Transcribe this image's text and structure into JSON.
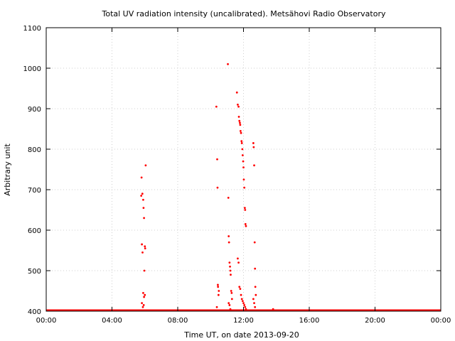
{
  "chart_data": {
    "type": "scatter",
    "title": "Total UV radiation intensity (uncalibrated). Metsähovi Radio Observatory",
    "xlabel": "Time UT, on date 2013-09-20",
    "ylabel": "Arbitrary unit",
    "xlim": [
      0,
      24
    ],
    "ylim": [
      400,
      1100
    ],
    "grid": true,
    "x_tick_values": [
      0,
      4,
      8,
      12,
      16,
      20,
      24
    ],
    "x_tick_labels": [
      "00:00",
      "04:00",
      "08:00",
      "12:00",
      "16:00",
      "20:00",
      "00:00"
    ],
    "y_tick_values": [
      400,
      500,
      600,
      700,
      800,
      900,
      1000,
      1100
    ],
    "y_tick_labels": [
      "400",
      "500",
      "600",
      "700",
      "800",
      "900",
      "1000",
      "1100"
    ],
    "series": [
      {
        "color": "#ff0000",
        "baseline": {
          "y": 400,
          "x_start": 0,
          "x_end": 24
        },
        "x": [
          5.78,
          5.82,
          5.86,
          5.9,
          5.92,
          5.95,
          5.97,
          6.0,
          6.02,
          6.05,
          5.8,
          5.85,
          5.9,
          5.95,
          6.0,
          5.82,
          5.88,
          5.93,
          10.35,
          10.4,
          10.42,
          10.45,
          10.5,
          10.38,
          10.44,
          10.48,
          11.05,
          11.08,
          11.1,
          11.12,
          11.15,
          11.18,
          11.2,
          11.22,
          11.25,
          11.28,
          11.3,
          11.1,
          11.15,
          11.2,
          11.6,
          11.65,
          11.7,
          11.72,
          11.75,
          11.78,
          11.8,
          11.82,
          11.85,
          11.88,
          11.9,
          11.93,
          11.95,
          11.98,
          12.0,
          12.02,
          12.05,
          12.08,
          12.1,
          12.12,
          12.15,
          11.65,
          11.7,
          11.75,
          11.8,
          11.85,
          11.9,
          11.95,
          12.0,
          12.05,
          12.1,
          12.15,
          12.2,
          12.6,
          12.62,
          12.65,
          12.68,
          12.7,
          12.72,
          12.75,
          12.6,
          12.65,
          12.7,
          13.8
        ],
        "y": [
          685,
          565,
          545,
          675,
          655,
          630,
          500,
          560,
          555,
          760,
          730,
          690,
          445,
          435,
          440,
          420,
          410,
          415,
          905,
          775,
          705,
          460,
          450,
          410,
          465,
          440,
          1010,
          680,
          585,
          570,
          520,
          510,
          500,
          490,
          450,
          445,
          430,
          420,
          415,
          405,
          940,
          910,
          905,
          880,
          870,
          865,
          860,
          845,
          840,
          820,
          815,
          800,
          785,
          770,
          755,
          725,
          705,
          655,
          650,
          615,
          610,
          530,
          520,
          460,
          455,
          440,
          430,
          425,
          420,
          415,
          410,
          405,
          402,
          815,
          805,
          760,
          570,
          505,
          460,
          440,
          430,
          420,
          410,
          405
        ]
      }
    ]
  }
}
